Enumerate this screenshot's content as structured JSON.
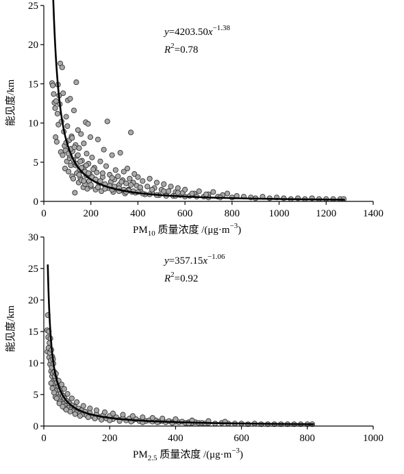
{
  "chart_data": [
    {
      "type": "scatter",
      "xlabel": {
        "main": "PM",
        "sub": "10",
        "rest": " 质量浓度 /(μg·m",
        "sup": "−3",
        "end": ")"
      },
      "ylabel": "能见度/km",
      "xlim": [
        0,
        1400
      ],
      "ylim": [
        0,
        25
      ],
      "xticks": [
        "0",
        "200",
        "400",
        "600",
        "800",
        "1000",
        "1200",
        "1400"
      ],
      "yticks": [
        "0",
        "5",
        "10",
        "15",
        "20",
        "25"
      ],
      "equation": {
        "y": "y",
        "eq": "=4203.50",
        "x": "x",
        "exp": "−1.38"
      },
      "r2": {
        "r": "R",
        "two": "2",
        "val": "=0.78"
      },
      "fit": {
        "a": 4203.5,
        "b": -1.38,
        "x_range": [
          38,
          1280
        ]
      },
      "point_color": "#a9a9a9",
      "points": [
        [
          35,
          15.1
        ],
        [
          38,
          14.8
        ],
        [
          42,
          13.7
        ],
        [
          45,
          12.6
        ],
        [
          48,
          11.9
        ],
        [
          50,
          8.2
        ],
        [
          52,
          12.8
        ],
        [
          55,
          7.6
        ],
        [
          58,
          11.2
        ],
        [
          60,
          14.9
        ],
        [
          62,
          9.8
        ],
        [
          65,
          13.5
        ],
        [
          68,
          12.4
        ],
        [
          70,
          17.6
        ],
        [
          72,
          6.3
        ],
        [
          75,
          10.2
        ],
        [
          78,
          17.1
        ],
        [
          80,
          5.9
        ],
        [
          82,
          13.8
        ],
        [
          85,
          8.9
        ],
        [
          88,
          7.1
        ],
        [
          90,
          4.2
        ],
        [
          92,
          6.5
        ],
        [
          95,
          10.8
        ],
        [
          98,
          5.1
        ],
        [
          100,
          9.6
        ],
        [
          102,
          12.9
        ],
        [
          105,
          3.8
        ],
        [
          108,
          7.8
        ],
        [
          110,
          5.5
        ],
        [
          112,
          13.1
        ],
        [
          115,
          4.6
        ],
        [
          118,
          8.3
        ],
        [
          120,
          3.2
        ],
        [
          122,
          6.4
        ],
        [
          125,
          2.9
        ],
        [
          128,
          11.6
        ],
        [
          130,
          4.9
        ],
        [
          132,
          1.1
        ],
        [
          135,
          7.2
        ],
        [
          138,
          15.2
        ],
        [
          140,
          3.6
        ],
        [
          142,
          5.8
        ],
        [
          145,
          9.1
        ],
        [
          148,
          2.4
        ],
        [
          150,
          6.8
        ],
        [
          152,
          4.1
        ],
        [
          155,
          3.0
        ],
        [
          158,
          8.6
        ],
        [
          160,
          2.7
        ],
        [
          162,
          5.2
        ],
        [
          165,
          3.9
        ],
        [
          168,
          1.8
        ],
        [
          170,
          7.4
        ],
        [
          172,
          4.4
        ],
        [
          175,
          2.2
        ],
        [
          178,
          10.1
        ],
        [
          180,
          3.3
        ],
        [
          182,
          6.1
        ],
        [
          185,
          1.6
        ],
        [
          188,
          9.9
        ],
        [
          190,
          4.8
        ],
        [
          192,
          2.6
        ],
        [
          195,
          3.5
        ],
        [
          198,
          8.2
        ],
        [
          200,
          1.9
        ],
        [
          205,
          5.6
        ],
        [
          210,
          2.9
        ],
        [
          215,
          4.3
        ],
        [
          220,
          1.5
        ],
        [
          225,
          3.7
        ],
        [
          230,
          7.9
        ],
        [
          235,
          2.3
        ],
        [
          240,
          5.1
        ],
        [
          245,
          1.3
        ],
        [
          250,
          3.1
        ],
        [
          255,
          6.6
        ],
        [
          260,
          2.0
        ],
        [
          265,
          4.5
        ],
        [
          270,
          10.2
        ],
        [
          275,
          1.7
        ],
        [
          280,
          3.4
        ],
        [
          285,
          2.5
        ],
        [
          290,
          5.9
        ],
        [
          295,
          1.2
        ],
        [
          300,
          2.8
        ],
        [
          305,
          4.0
        ],
        [
          310,
          1.6
        ],
        [
          315,
          3.2
        ],
        [
          320,
          2.1
        ],
        [
          325,
          6.2
        ],
        [
          330,
          1.4
        ],
        [
          335,
          2.7
        ],
        [
          340,
          3.8
        ],
        [
          345,
          1.0
        ],
        [
          350,
          2.3
        ],
        [
          355,
          4.2
        ],
        [
          360,
          1.5
        ],
        [
          365,
          2.9
        ],
        [
          370,
          8.8
        ],
        [
          375,
          1.2
        ],
        [
          380,
          2.4
        ],
        [
          385,
          3.5
        ],
        [
          390,
          1.1
        ],
        [
          395,
          2.0
        ],
        [
          400,
          3.1
        ],
        [
          410,
          1.4
        ],
        [
          420,
          2.6
        ],
        [
          430,
          0.9
        ],
        [
          440,
          1.9
        ],
        [
          450,
          2.9
        ],
        [
          460,
          1.1
        ],
        [
          470,
          1.7
        ],
        [
          480,
          2.4
        ],
        [
          490,
          0.8
        ],
        [
          500,
          1.5
        ],
        [
          510,
          2.2
        ],
        [
          520,
          0.9
        ],
        [
          530,
          1.3
        ],
        [
          540,
          1.9
        ],
        [
          550,
          0.7
        ],
        [
          560,
          1.2
        ],
        [
          570,
          1.7
        ],
        [
          580,
          0.8
        ],
        [
          590,
          1.1
        ],
        [
          600,
          1.5
        ],
        [
          620,
          0.7
        ],
        [
          640,
          1.0
        ],
        [
          660,
          1.3
        ],
        [
          680,
          0.6
        ],
        [
          700,
          0.9
        ],
        [
          720,
          1.2
        ],
        [
          740,
          0.6
        ],
        [
          760,
          0.8
        ],
        [
          780,
          1.0
        ],
        [
          800,
          0.5
        ],
        [
          820,
          0.7
        ],
        [
          850,
          0.6
        ],
        [
          880,
          0.5
        ],
        [
          900,
          0.4
        ],
        [
          930,
          0.6
        ],
        [
          960,
          0.4
        ],
        [
          990,
          0.5
        ],
        [
          1020,
          0.4
        ],
        [
          1050,
          0.3
        ],
        [
          1080,
          0.4
        ],
        [
          1110,
          0.3
        ],
        [
          1140,
          0.4
        ],
        [
          1170,
          0.3
        ],
        [
          1200,
          0.3
        ],
        [
          1230,
          0.3
        ],
        [
          1260,
          0.3
        ],
        [
          1275,
          0.3
        ],
        [
          110,
          5.9
        ],
        [
          115,
          6.7
        ],
        [
          125,
          5.3
        ],
        [
          135,
          4.6
        ],
        [
          145,
          5.9
        ],
        [
          160,
          4.3
        ],
        [
          175,
          3.8
        ],
        [
          190,
          3.6
        ],
        [
          205,
          3.1
        ],
        [
          220,
          2.8
        ],
        [
          240,
          2.6
        ],
        [
          260,
          2.2
        ],
        [
          280,
          2.0
        ],
        [
          300,
          1.9
        ],
        [
          320,
          1.7
        ],
        [
          340,
          1.5
        ],
        [
          360,
          1.4
        ],
        [
          380,
          1.3
        ],
        [
          400,
          1.2
        ],
        [
          140,
          4.8
        ],
        [
          150,
          3.4
        ],
        [
          170,
          2.6
        ],
        [
          200,
          2.1
        ],
        [
          230,
          1.8
        ],
        [
          260,
          1.6
        ],
        [
          290,
          1.5
        ],
        [
          320,
          1.3
        ],
        [
          350,
          1.2
        ],
        [
          420,
          1.0
        ],
        [
          450,
          0.9
        ],
        [
          480,
          0.8
        ],
        [
          520,
          0.7
        ],
        [
          560,
          0.7
        ],
        [
          600,
          0.6
        ],
        [
          650,
          0.6
        ],
        [
          700,
          0.5
        ],
        [
          750,
          0.5
        ],
        [
          95,
          7.5
        ],
        [
          105,
          6.1
        ],
        [
          120,
          8.1
        ],
        [
          130,
          6.9
        ],
        [
          155,
          5.1
        ],
        [
          180,
          4.6
        ],
        [
          210,
          4.1
        ],
        [
          250,
          3.6
        ],
        [
          290,
          3.0
        ],
        [
          330,
          2.5
        ],
        [
          370,
          2.1
        ],
        [
          410,
          1.8
        ],
        [
          460,
          1.5
        ],
        [
          510,
          1.3
        ],
        [
          570,
          1.1
        ],
        [
          630,
          1.0
        ],
        [
          690,
          0.9
        ]
      ]
    },
    {
      "type": "scatter",
      "xlabel": {
        "main": "PM",
        "sub": "2.5",
        "rest": " 质量浓度 /(μg·m",
        "sup": "−3",
        "end": ")"
      },
      "ylabel": "能见度/km",
      "xlim": [
        0,
        1000
      ],
      "ylim": [
        0,
        30
      ],
      "xticks": [
        "0",
        "200",
        "400",
        "600",
        "800",
        "1000"
      ],
      "yticks": [
        "0",
        "5",
        "10",
        "15",
        "20",
        "25",
        "30"
      ],
      "equation": {
        "y": "y",
        "eq": "=357.15",
        "x": "x",
        "exp": "−1.06"
      },
      "r2": {
        "r": "R",
        "two": "2",
        "val": "=0.92"
      },
      "fit": {
        "a": 357.15,
        "b": -1.06,
        "x_range": [
          12,
          820
        ]
      },
      "point_color": "#a9a9a9",
      "points": [
        [
          10,
          15.2
        ],
        [
          11,
          11.8
        ],
        [
          12,
          17.6
        ],
        [
          13,
          14.1
        ],
        [
          14,
          12.4
        ],
        [
          15,
          15.0
        ],
        [
          16,
          10.9
        ],
        [
          17,
          13.2
        ],
        [
          18,
          11.6
        ],
        [
          19,
          9.8
        ],
        [
          20,
          13.9
        ],
        [
          21,
          10.4
        ],
        [
          22,
          8.7
        ],
        [
          23,
          12.1
        ],
        [
          24,
          9.3
        ],
        [
          25,
          7.9
        ],
        [
          26,
          11.0
        ],
        [
          27,
          8.4
        ],
        [
          28,
          7.1
        ],
        [
          29,
          9.9
        ],
        [
          30,
          6.8
        ],
        [
          32,
          8.6
        ],
        [
          34,
          6.1
        ],
        [
          36,
          7.5
        ],
        [
          38,
          5.6
        ],
        [
          40,
          6.9
        ],
        [
          42,
          5.0
        ],
        [
          44,
          6.3
        ],
        [
          46,
          4.6
        ],
        [
          48,
          5.7
        ],
        [
          50,
          4.3
        ],
        [
          52,
          5.2
        ],
        [
          55,
          3.9
        ],
        [
          58,
          4.8
        ],
        [
          60,
          3.5
        ],
        [
          63,
          4.4
        ],
        [
          66,
          3.2
        ],
        [
          70,
          4.0
        ],
        [
          74,
          2.9
        ],
        [
          78,
          3.6
        ],
        [
          82,
          2.6
        ],
        [
          86,
          3.3
        ],
        [
          90,
          2.4
        ],
        [
          95,
          3.0
        ],
        [
          100,
          2.2
        ],
        [
          105,
          2.8
        ],
        [
          110,
          2.0
        ],
        [
          115,
          2.5
        ],
        [
          120,
          1.9
        ],
        [
          125,
          2.3
        ],
        [
          130,
          1.7
        ],
        [
          140,
          2.1
        ],
        [
          150,
          1.5
        ],
        [
          160,
          1.9
        ],
        [
          170,
          1.4
        ],
        [
          180,
          1.7
        ],
        [
          190,
          1.2
        ],
        [
          200,
          1.6
        ],
        [
          210,
          1.1
        ],
        [
          220,
          1.4
        ],
        [
          230,
          1.0
        ],
        [
          240,
          1.3
        ],
        [
          250,
          0.9
        ],
        [
          260,
          1.2
        ],
        [
          270,
          0.9
        ],
        [
          280,
          1.1
        ],
        [
          290,
          0.8
        ],
        [
          300,
          1.0
        ],
        [
          310,
          0.8
        ],
        [
          320,
          0.9
        ],
        [
          330,
          0.7
        ],
        [
          340,
          0.9
        ],
        [
          350,
          0.7
        ],
        [
          360,
          0.8
        ],
        [
          370,
          0.6
        ],
        [
          380,
          0.8
        ],
        [
          390,
          0.6
        ],
        [
          400,
          0.7
        ],
        [
          410,
          0.6
        ],
        [
          420,
          0.7
        ],
        [
          430,
          0.5
        ],
        [
          440,
          0.6
        ],
        [
          450,
          0.5
        ],
        [
          460,
          0.6
        ],
        [
          470,
          0.5
        ],
        [
          480,
          0.5
        ],
        [
          490,
          0.4
        ],
        [
          500,
          0.5
        ],
        [
          520,
          0.4
        ],
        [
          540,
          0.5
        ],
        [
          560,
          0.4
        ],
        [
          580,
          0.4
        ],
        [
          600,
          0.4
        ],
        [
          620,
          0.3
        ],
        [
          640,
          0.4
        ],
        [
          660,
          0.3
        ],
        [
          680,
          0.3
        ],
        [
          700,
          0.3
        ],
        [
          720,
          0.3
        ],
        [
          740,
          0.3
        ],
        [
          760,
          0.3
        ],
        [
          780,
          0.3
        ],
        [
          800,
          0.3
        ],
        [
          815,
          0.3
        ],
        [
          28,
          10.6
        ],
        [
          33,
          7.9
        ],
        [
          37,
          8.3
        ],
        [
          45,
          7.2
        ],
        [
          54,
          6.6
        ],
        [
          62,
          5.9
        ],
        [
          72,
          5.1
        ],
        [
          85,
          4.4
        ],
        [
          100,
          3.8
        ],
        [
          120,
          3.2
        ],
        [
          140,
          2.8
        ],
        [
          160,
          2.5
        ],
        [
          185,
          2.2
        ],
        [
          210,
          2.0
        ],
        [
          240,
          1.8
        ],
        [
          270,
          1.6
        ],
        [
          300,
          1.4
        ],
        [
          330,
          1.3
        ],
        [
          360,
          1.2
        ],
        [
          400,
          1.1
        ],
        [
          450,
          0.9
        ],
        [
          500,
          0.8
        ],
        [
          550,
          0.7
        ],
        [
          35,
          4.6
        ],
        [
          48,
          3.9
        ],
        [
          65,
          2.8
        ],
        [
          80,
          2.3
        ],
        [
          95,
          1.9
        ],
        [
          110,
          1.6
        ],
        [
          135,
          1.4
        ],
        [
          155,
          1.2
        ],
        [
          175,
          1.0
        ],
        [
          200,
          0.9
        ],
        [
          230,
          0.8
        ],
        [
          265,
          0.7
        ],
        [
          300,
          0.6
        ],
        [
          345,
          0.6
        ],
        [
          390,
          0.5
        ],
        [
          440,
          0.4
        ],
        [
          22,
          6.8
        ],
        [
          26,
          6.0
        ],
        [
          31,
          5.3
        ],
        [
          39,
          4.4
        ],
        [
          47,
          3.6
        ],
        [
          57,
          3.1
        ],
        [
          68,
          2.6
        ]
      ]
    }
  ]
}
